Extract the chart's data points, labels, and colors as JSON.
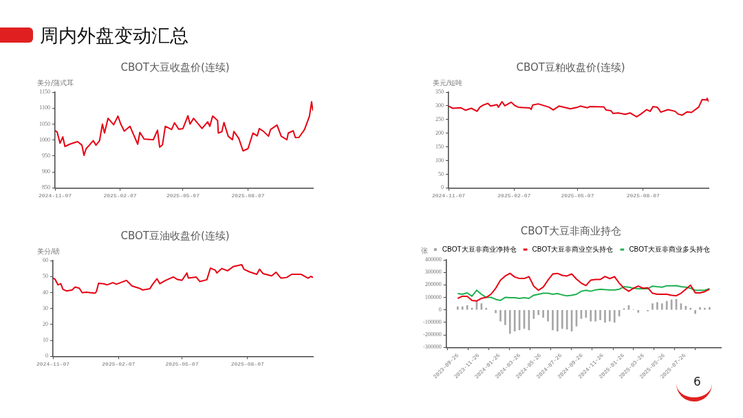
{
  "chart_data": [
    {
      "type": "line",
      "title": "CBOT大豆收盘价(连续)",
      "ylabel": "美分/蒲式耳",
      "annotations": [
        "周内外盘变动汇总"
      ],
      "marker": "none",
      "line_style": "solid",
      "xlim": [
        "2024-11-07",
        "2025-11-07"
      ],
      "xticks": [
        "2024-11-07",
        "2025-02-07",
        "2025-05-07",
        "2025-08-07"
      ],
      "ylim": [
        850,
        1150
      ],
      "yticks": [
        850,
        900,
        950,
        1000,
        1050,
        1100,
        1150
      ],
      "series": [
        {
          "color": "#e60012",
          "x": [
            "2024-11-07",
            "2024-11-10",
            "2024-11-14",
            "2024-11-18",
            "2024-11-21",
            "2024-11-29",
            "2024-12-09",
            "2024-12-15",
            "2024-12-18",
            "2024-12-21",
            "2024-12-26",
            "2024-12-31",
            "2025-01-04",
            "2025-01-09",
            "2025-01-13",
            "2025-01-16",
            "2025-01-21",
            "2025-01-29",
            "2025-02-04",
            "2025-02-08",
            "2025-02-13",
            "2025-02-21",
            "2025-03-04",
            "2025-03-07",
            "2025-03-13",
            "2025-03-26",
            "2025-04-01",
            "2025-04-04",
            "2025-04-08",
            "2025-04-12",
            "2025-04-21",
            "2025-04-25",
            "2025-05-01",
            "2025-05-07",
            "2025-05-14",
            "2025-05-17",
            "2025-05-22",
            "2025-06-03",
            "2025-06-11",
            "2025-06-14",
            "2025-06-18",
            "2025-06-25",
            "2025-06-26",
            "2025-07-01",
            "2025-07-04",
            "2025-07-10",
            "2025-07-16",
            "2025-07-18",
            "2025-07-25",
            "2025-07-31",
            "2025-08-07",
            "2025-08-14",
            "2025-08-20",
            "2025-08-23",
            "2025-08-29",
            "2025-09-05",
            "2025-09-08",
            "2025-09-17",
            "2025-09-23",
            "2025-10-01",
            "2025-10-03",
            "2025-10-10",
            "2025-10-13",
            "2025-10-18",
            "2025-10-26",
            "2025-11-02",
            "2025-11-05",
            "2025-11-06",
            "2025-11-07"
          ],
          "values": [
            1030,
            1025,
            990,
            1010,
            980,
            988,
            995,
            984,
            952,
            973,
            985,
            998,
            984,
            998,
            1050,
            1022,
            1068,
            1048,
            1075,
            1050,
            1028,
            1043,
            987,
            1024,
            1003,
            1001,
            1031,
            978,
            985,
            1043,
            1033,
            1054,
            1034,
            1036,
            1076,
            1050,
            1068,
            1036,
            1057,
            1043,
            1075,
            1061,
            1022,
            1026,
            1055,
            1012,
            1001,
            1027,
            1005,
            966,
            973,
            1022,
            1013,
            1036,
            1027,
            1012,
            1033,
            1047,
            1012,
            1001,
            1022,
            1029,
            1008,
            1008,
            1033,
            1075,
            1120,
            1103,
            1092
          ]
        }
      ]
    },
    {
      "type": "line",
      "title": "CBOT豆粕收盘价(连续)",
      "ylabel": "美元/短吨",
      "marker": "none",
      "line_style": "solid",
      "xlim": [
        "2024-11-07",
        "2025-11-07"
      ],
      "xticks": [
        "2024-11-07",
        "2025-02-07",
        "2025-05-07",
        "2025-08-07"
      ],
      "ylim": [
        0,
        350
      ],
      "yticks": [
        0,
        50,
        100,
        150,
        200,
        250,
        300,
        350
      ],
      "series": [
        {
          "color": "#e60012",
          "x": [
            "2024-11-07",
            "2024-11-13",
            "2024-11-24",
            "2024-12-01",
            "2024-12-09",
            "2024-12-17",
            "2024-12-21",
            "2024-12-26",
            "2025-01-01",
            "2025-01-05",
            "2025-01-14",
            "2025-01-16",
            "2025-01-21",
            "2025-01-25",
            "2025-02-03",
            "2025-02-08",
            "2025-02-13",
            "2025-03-01",
            "2025-03-03",
            "2025-03-05",
            "2025-03-13",
            "2025-03-28",
            "2025-04-03",
            "2025-04-11",
            "2025-04-27",
            "2025-05-07",
            "2025-05-11",
            "2025-05-21",
            "2025-05-24",
            "2025-06-13",
            "2025-06-16",
            "2025-06-23",
            "2025-06-26",
            "2025-07-03",
            "2025-07-13",
            "2025-07-20",
            "2025-07-29",
            "2025-08-04",
            "2025-08-12",
            "2025-08-17",
            "2025-08-21",
            "2025-08-27",
            "2025-09-01",
            "2025-09-11",
            "2025-09-21",
            "2025-09-25",
            "2025-10-01",
            "2025-10-08",
            "2025-10-14",
            "2025-10-24",
            "2025-10-29",
            "2025-11-04",
            "2025-11-05",
            "2025-11-07"
          ],
          "values": [
            299,
            291,
            293,
            284,
            291,
            280,
            295,
            303,
            309,
            299,
            304,
            295,
            315,
            300,
            313,
            301,
            295,
            292,
            287,
            303,
            307,
            295,
            285,
            299,
            289,
            295,
            299,
            293,
            297,
            296,
            285,
            282,
            272,
            274,
            269,
            274,
            260,
            270,
            286,
            280,
            297,
            295,
            277,
            286,
            280,
            270,
            266,
            278,
            276,
            295,
            323,
            321,
            327,
            315
          ]
        }
      ]
    },
    {
      "type": "line",
      "title": "CBOT豆油收盘价(连续)",
      "ylabel": "美分/磅",
      "marker": "none",
      "line_style": "solid",
      "xlim": [
        "2024-11-07",
        "2025-11-07"
      ],
      "xticks": [
        "2024-11-07",
        "2025-02-07",
        "2025-05-07",
        "2025-08-07"
      ],
      "ylim": [
        0,
        60
      ],
      "yticks": [
        0,
        10,
        20,
        30,
        40,
        50,
        60
      ],
      "series": [
        {
          "color": "#e60012",
          "x": [
            "2024-11-07",
            "2024-11-10",
            "2024-11-14",
            "2024-11-18",
            "2024-11-21",
            "2024-11-26",
            "2024-12-04",
            "2024-12-08",
            "2024-12-14",
            "2024-12-18",
            "2024-12-24",
            "2025-01-05",
            "2025-01-07",
            "2025-01-10",
            "2025-01-17",
            "2025-01-22",
            "2025-01-30",
            "2025-02-04",
            "2025-02-18",
            "2025-02-26",
            "2025-03-08",
            "2025-03-13",
            "2025-03-23",
            "2025-03-27",
            "2025-04-02",
            "2025-04-06",
            "2025-04-14",
            "2025-04-25",
            "2025-04-30",
            "2025-05-07",
            "2025-05-14",
            "2025-05-16",
            "2025-05-27",
            "2025-06-01",
            "2025-06-11",
            "2025-06-16",
            "2025-06-23",
            "2025-06-25",
            "2025-07-02",
            "2025-07-10",
            "2025-07-18",
            "2025-07-30",
            "2025-08-02",
            "2025-08-10",
            "2025-08-20",
            "2025-08-24",
            "2025-08-29",
            "2025-09-10",
            "2025-09-16",
            "2025-09-23",
            "2025-10-01",
            "2025-10-08",
            "2025-10-21",
            "2025-10-31",
            "2025-11-04",
            "2025-11-07"
          ],
          "values": [
            49.0,
            48.3,
            44.8,
            45.5,
            42.0,
            41.0,
            41.6,
            43.4,
            42.7,
            39.9,
            40.2,
            39.6,
            40.6,
            45.8,
            45.5,
            44.8,
            46.2,
            45.2,
            47.6,
            44.1,
            42.7,
            41.6,
            42.4,
            45.2,
            48.6,
            45.5,
            47.6,
            49.7,
            48.3,
            47.6,
            52.2,
            49.0,
            49.7,
            46.9,
            48.0,
            55.3,
            53.9,
            52.2,
            55.0,
            53.6,
            56.2,
            57.4,
            54.6,
            52.9,
            51.4,
            54.6,
            51.8,
            50.4,
            52.7,
            49.0,
            49.4,
            51.4,
            51.4,
            49.0,
            50.1,
            49.4
          ]
        }
      ]
    },
    {
      "type": "line",
      "title": "CBOT大豆非商业持仓",
      "ylabel": "张",
      "annotations": [
        "6"
      ],
      "legend": "top",
      "marker": "none",
      "line_style": "solid",
      "xlim": [
        "2023-09-26",
        "2025-10-07"
      ],
      "xticks": [
        "2023-09-26",
        "2023-11-26",
        "2024-01-26",
        "2024-03-26",
        "2024-05-26",
        "2024-07-26",
        "2024-09-26",
        "2024-11-26",
        "2025-01-26",
        "2025-03-26",
        "2025-05-26",
        "2025-07-26"
      ],
      "ylim": [
        -300000,
        400000
      ],
      "yticks": [
        -300000,
        -200000,
        -100000,
        0,
        100000,
        200000,
        300000,
        400000
      ],
      "x": [
        "2023-09-26",
        "2023-10-10",
        "2023-10-24",
        "2023-11-07",
        "2023-11-21",
        "2023-12-05",
        "2023-12-19",
        "2024-01-02",
        "2024-01-16",
        "2024-01-30",
        "2024-02-13",
        "2024-02-27",
        "2024-03-12",
        "2024-03-26",
        "2024-04-09",
        "2024-04-23",
        "2024-05-07",
        "2024-05-21",
        "2024-06-04",
        "2024-06-18",
        "2024-07-02",
        "2024-07-16",
        "2024-07-30",
        "2024-08-13",
        "2024-08-27",
        "2024-09-10",
        "2024-09-24",
        "2024-10-08",
        "2024-10-22",
        "2024-11-05",
        "2024-11-19",
        "2024-12-03",
        "2024-12-17",
        "2024-12-31",
        "2025-01-14",
        "2025-01-28",
        "2025-02-11",
        "2025-02-25",
        "2025-03-11",
        "2025-03-25",
        "2025-04-08",
        "2025-04-22",
        "2025-05-06",
        "2025-05-20",
        "2025-06-03",
        "2025-06-17",
        "2025-07-01",
        "2025-07-15",
        "2025-07-29",
        "2025-08-12",
        "2025-08-26",
        "2025-09-09",
        "2025-09-23",
        "2025-10-07"
      ],
      "series": [
        {
          "type": "bar",
          "name": "CBOT大豆非商业净持仓",
          "color": "#a6a6a6",
          "values": [
            25000,
            25000,
            35000,
            15000,
            70000,
            50000,
            15000,
            null,
            -25000,
            -90000,
            -120000,
            -190000,
            -170000,
            -160000,
            -150000,
            -160000,
            -70000,
            -40000,
            -60000,
            -90000,
            -160000,
            -170000,
            -150000,
            -155000,
            -170000,
            -130000,
            -70000,
            -60000,
            -90000,
            -90000,
            -80000,
            -100000,
            -90000,
            -100000,
            -50000,
            10000,
            35000,
            0,
            -20000,
            null,
            -10000,
            50000,
            60000,
            50000,
            70000,
            80000,
            85000,
            50000,
            30000,
            15000,
            -30000,
            20000,
            15000,
            20000
          ]
        },
        {
          "name": "CBOT大豆非商业空头持仓",
          "color": "#e60012",
          "values": [
            92000,
            109000,
            109000,
            76000,
            71000,
            92000,
            100000,
            125000,
            173000,
            238000,
            271000,
            292000,
            263000,
            251000,
            251000,
            266000,
            190000,
            157000,
            182000,
            238000,
            287000,
            292000,
            276000,
            271000,
            287000,
            246000,
            214000,
            194000,
            238000,
            243000,
            243000,
            267000,
            250000,
            266000,
            214000,
            173000,
            149000,
            173000,
            190000,
            173000,
            177000,
            133000,
            125000,
            125000,
            125000,
            117000,
            113000,
            133000,
            165000,
            198000,
            136000,
            136000,
            146000,
            165000
          ]
        },
        {
          "name": "CBOT大豆非商业多头持仓",
          "color": "#1fb050",
          "values": [
            130000,
            125000,
            136000,
            109000,
            157000,
            125000,
            100000,
            100000,
            84000,
            76000,
            100000,
            97000,
            97000,
            92000,
            97000,
            92000,
            117000,
            125000,
            133000,
            133000,
            125000,
            130000,
            120000,
            112000,
            117000,
            125000,
            149000,
            157000,
            149000,
            160000,
            165000,
            162000,
            160000,
            160000,
            165000,
            185000,
            181000,
            173000,
            169000,
            169000,
            169000,
            190000,
            185000,
            181000,
            193000,
            193000,
            194000,
            185000,
            181000,
            173000,
            157000,
            157000,
            157000,
            170000
          ]
        }
      ]
    }
  ]
}
